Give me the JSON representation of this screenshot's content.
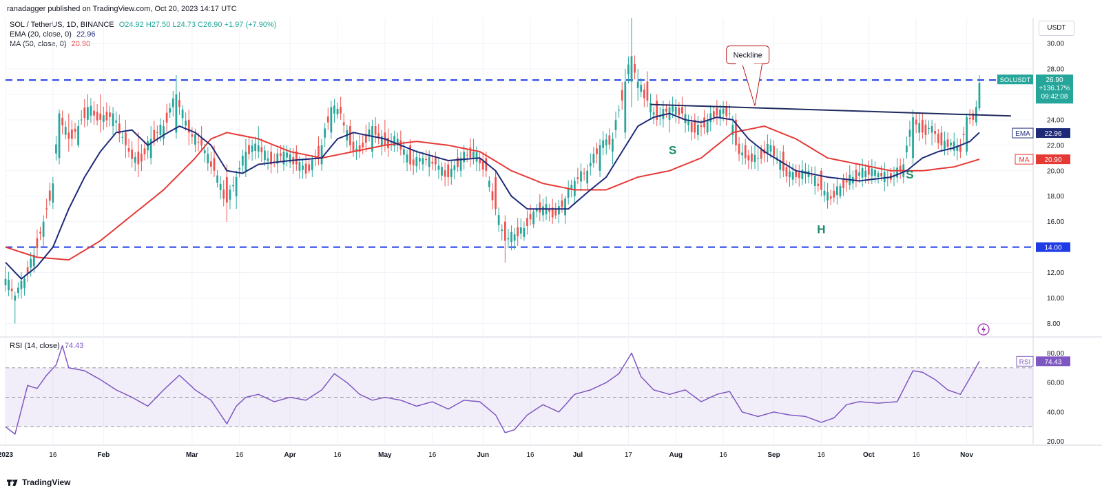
{
  "header": {
    "published": "ranadagger published on TradingView.com, Oct 20, 2023 14:17 UTC"
  },
  "legend": {
    "symbol": "SOL / TetherUS, 1D, BINANCE",
    "ohlc": "O24.92 H27.50 L24.73 C26.90 +1.97 (+7.90%)",
    "ema_label": "EMA (20, close, 0)",
    "ema_value": "22.96",
    "ma_label": "MA (50, close, 0)",
    "ma_value": "20.90",
    "rsi_label": "RSI (14, close)",
    "rsi_value": "74.43"
  },
  "unit": "USDT",
  "footer": {
    "brand": "TradingView"
  },
  "colors": {
    "up": "#26a69a",
    "down": "#ef5350",
    "ema": "#1e2a78",
    "ma": "#e53935",
    "rsi": "#7e57c2",
    "dashed": "#1e3be6",
    "neckline": "#1e2a5e",
    "pattern": "#1b8a6b"
  },
  "chart_data": {
    "type": "candlestick",
    "title": "SOL / TetherUS, 1D, BINANCE",
    "price_axis": {
      "min": 7,
      "max": 32,
      "ticks": [
        "8.00",
        "10.00",
        "12.00",
        "14.00",
        "16.00",
        "18.00",
        "20.00",
        "22.00",
        "24.00",
        "26.00",
        "28.00",
        "30.00"
      ]
    },
    "x_labels": [
      "2023",
      "16",
      "Feb",
      "Mar",
      "16",
      "Apr",
      "16",
      "May",
      "16",
      "Jun",
      "16",
      "Jul",
      "17",
      "Aug",
      "16",
      "Sep",
      "16",
      "Oct",
      "16",
      "Nov"
    ],
    "x_label_days": [
      0,
      15,
      31,
      59,
      74,
      90,
      105,
      120,
      135,
      151,
      166,
      181,
      197,
      212,
      227,
      243,
      258,
      273,
      288,
      304
    ],
    "ohlc_key": [
      [
        0,
        11.0,
        12.5,
        10.5,
        11.5
      ],
      [
        3,
        9.8,
        10.5,
        8.0,
        10.2
      ],
      [
        6,
        10.8,
        11.8,
        10.2,
        11.5
      ],
      [
        9,
        12.5,
        14.0,
        12.0,
        13.4
      ],
      [
        12,
        14.8,
        16.5,
        14.0,
        16.0
      ],
      [
        15,
        17.5,
        19.5,
        17.0,
        19.0
      ],
      [
        17,
        21.0,
        24.8,
        20.5,
        24.5
      ],
      [
        20,
        23.0,
        24.5,
        21.5,
        22.5
      ],
      [
        23,
        22.0,
        24.0,
        21.8,
        23.5
      ],
      [
        26,
        24.0,
        26.0,
        23.5,
        25.0
      ],
      [
        30,
        24.5,
        26.0,
        23.0,
        24.0
      ],
      [
        34,
        23.5,
        25.0,
        22.8,
        24.5
      ],
      [
        38,
        23.0,
        24.0,
        21.0,
        22.0
      ],
      [
        42,
        21.5,
        23.0,
        19.5,
        20.5
      ],
      [
        46,
        21.0,
        23.5,
        20.5,
        22.5
      ],
      [
        50,
        22.5,
        24.0,
        22.0,
        23.5
      ],
      [
        54,
        23.0,
        27.5,
        22.5,
        26.0
      ],
      [
        58,
        24.0,
        24.8,
        22.0,
        23.0
      ],
      [
        62,
        22.5,
        23.5,
        21.5,
        22.0
      ],
      [
        66,
        21.0,
        22.0,
        19.5,
        20.0
      ],
      [
        70,
        19.5,
        20.5,
        16.0,
        17.5
      ],
      [
        73,
        18.0,
        20.0,
        17.0,
        19.5
      ],
      [
        76,
        20.0,
        22.5,
        19.5,
        21.5
      ],
      [
        80,
        21.5,
        23.5,
        21.0,
        22.0
      ],
      [
        84,
        21.5,
        22.0,
        19.8,
        20.5
      ],
      [
        88,
        20.5,
        22.0,
        20.0,
        21.5
      ],
      [
        92,
        21.5,
        22.0,
        20.0,
        20.5
      ],
      [
        96,
        20.5,
        21.0,
        19.8,
        20.0
      ],
      [
        100,
        20.5,
        22.5,
        20.0,
        22.0
      ],
      [
        103,
        23.0,
        25.5,
        22.5,
        25.0
      ],
      [
        106,
        25.0,
        25.8,
        24.0,
        24.5
      ],
      [
        109,
        23.5,
        24.0,
        21.5,
        22.0
      ],
      [
        112,
        22.0,
        22.8,
        21.0,
        21.5
      ],
      [
        116,
        21.5,
        24.0,
        21.0,
        23.5
      ],
      [
        120,
        23.0,
        24.0,
        21.5,
        22.0
      ],
      [
        124,
        22.0,
        23.0,
        21.5,
        22.5
      ],
      [
        128,
        22.0,
        22.5,
        20.0,
        20.5
      ],
      [
        132,
        20.5,
        21.5,
        20.0,
        21.0
      ],
      [
        136,
        21.0,
        21.5,
        20.0,
        20.5
      ],
      [
        140,
        20.5,
        20.8,
        18.8,
        19.5
      ],
      [
        144,
        20.0,
        21.5,
        19.5,
        21.0
      ],
      [
        148,
        21.0,
        22.5,
        20.5,
        21.5
      ],
      [
        152,
        21.0,
        21.5,
        19.5,
        20.0
      ],
      [
        155,
        19.5,
        20.0,
        16.5,
        17.0
      ],
      [
        158,
        16.0,
        16.5,
        12.8,
        14.5
      ],
      [
        161,
        14.5,
        15.5,
        13.8,
        15.0
      ],
      [
        164,
        14.8,
        16.0,
        14.5,
        15.5
      ],
      [
        167,
        15.8,
        17.0,
        15.5,
        16.8
      ],
      [
        170,
        16.5,
        17.8,
        16.0,
        17.2
      ],
      [
        174,
        17.0,
        17.5,
        16.2,
        16.5
      ],
      [
        177,
        16.5,
        18.0,
        15.8,
        17.8
      ],
      [
        180,
        18.0,
        19.5,
        17.5,
        19.2
      ],
      [
        184,
        19.0,
        20.5,
        18.5,
        20.0
      ],
      [
        188,
        20.0,
        22.5,
        19.5,
        22.0
      ],
      [
        192,
        21.5,
        23.0,
        20.5,
        22.5
      ],
      [
        196,
        23.0,
        28.0,
        22.5,
        27.0
      ],
      [
        198,
        27.0,
        32.0,
        25.0,
        29.0
      ],
      [
        200,
        26.5,
        28.0,
        25.5,
        27.0
      ],
      [
        203,
        27.0,
        27.8,
        25.0,
        25.5
      ],
      [
        206,
        25.5,
        26.0,
        23.5,
        24.0
      ],
      [
        210,
        24.0,
        25.5,
        23.0,
        25.0
      ],
      [
        214,
        25.0,
        25.8,
        24.0,
        24.5
      ],
      [
        218,
        24.0,
        24.5,
        22.5,
        23.0
      ],
      [
        222,
        23.0,
        24.5,
        22.8,
        24.0
      ],
      [
        226,
        24.2,
        25.2,
        23.5,
        24.8
      ],
      [
        229,
        24.5,
        25.2,
        24.0,
        24.5
      ],
      [
        231,
        24.0,
        24.5,
        21.5,
        22.0
      ],
      [
        234,
        22.0,
        22.5,
        20.5,
        21.0
      ],
      [
        238,
        21.0,
        21.8,
        20.0,
        21.0
      ],
      [
        242,
        21.5,
        22.5,
        21.0,
        22.0
      ],
      [
        246,
        21.5,
        22.0,
        19.5,
        20.0
      ],
      [
        250,
        20.0,
        20.5,
        19.0,
        19.5
      ],
      [
        254,
        19.5,
        20.5,
        19.0,
        20.0
      ],
      [
        258,
        20.0,
        20.2,
        18.0,
        18.5
      ],
      [
        261,
        18.0,
        18.5,
        17.3,
        17.8
      ],
      [
        264,
        18.0,
        19.0,
        17.8,
        18.8
      ],
      [
        268,
        19.0,
        20.0,
        18.5,
        19.5
      ],
      [
        272,
        19.5,
        20.5,
        19.0,
        20.0
      ],
      [
        276,
        19.5,
        20.0,
        19.0,
        19.8
      ],
      [
        280,
        19.8,
        20.2,
        19.0,
        19.3
      ],
      [
        284,
        19.5,
        21.0,
        19.0,
        20.5
      ],
      [
        287,
        21.0,
        24.8,
        20.5,
        24.2
      ],
      [
        290,
        24.0,
        24.5,
        22.5,
        23.0
      ],
      [
        293,
        23.0,
        24.0,
        22.0,
        23.5
      ],
      [
        296,
        23.0,
        23.5,
        21.5,
        22.0
      ],
      [
        299,
        22.0,
        22.5,
        21.5,
        22.2
      ],
      [
        302,
        22.0,
        22.5,
        21.0,
        21.5
      ],
      [
        304,
        21.5,
        24.5,
        21.2,
        24.2
      ],
      [
        306,
        24.5,
        24.8,
        23.5,
        24.0
      ],
      [
        307,
        23.8,
        25.5,
        23.5,
        25.0
      ],
      [
        308,
        24.9,
        27.5,
        24.7,
        26.9
      ]
    ],
    "ema20_key": [
      [
        0,
        12.8
      ],
      [
        5,
        11.5
      ],
      [
        10,
        12.5
      ],
      [
        15,
        14.0
      ],
      [
        20,
        17.0
      ],
      [
        25,
        19.5
      ],
      [
        30,
        21.5
      ],
      [
        35,
        23.0
      ],
      [
        40,
        23.2
      ],
      [
        45,
        22.0
      ],
      [
        50,
        22.8
      ],
      [
        55,
        23.5
      ],
      [
        60,
        23.0
      ],
      [
        65,
        22.0
      ],
      [
        70,
        20.0
      ],
      [
        75,
        19.8
      ],
      [
        80,
        20.5
      ],
      [
        90,
        20.8
      ],
      [
        100,
        21.0
      ],
      [
        105,
        22.5
      ],
      [
        110,
        23.0
      ],
      [
        120,
        22.5
      ],
      [
        130,
        21.5
      ],
      [
        140,
        20.8
      ],
      [
        150,
        21.0
      ],
      [
        155,
        20.0
      ],
      [
        160,
        18.0
      ],
      [
        165,
        17.0
      ],
      [
        170,
        17.0
      ],
      [
        178,
        17.0
      ],
      [
        185,
        18.5
      ],
      [
        190,
        19.5
      ],
      [
        195,
        21.5
      ],
      [
        200,
        23.5
      ],
      [
        205,
        24.2
      ],
      [
        210,
        24.5
      ],
      [
        215,
        24.0
      ],
      [
        220,
        23.8
      ],
      [
        225,
        24.2
      ],
      [
        230,
        24.0
      ],
      [
        235,
        22.5
      ],
      [
        240,
        21.5
      ],
      [
        250,
        20.0
      ],
      [
        260,
        19.5
      ],
      [
        270,
        19.2
      ],
      [
        280,
        19.5
      ],
      [
        285,
        20.0
      ],
      [
        290,
        21.0
      ],
      [
        295,
        21.5
      ],
      [
        300,
        21.8
      ],
      [
        305,
        22.3
      ],
      [
        308,
        23.0
      ]
    ],
    "ma50_key": [
      [
        0,
        14.0
      ],
      [
        10,
        13.2
      ],
      [
        20,
        13.0
      ],
      [
        30,
        14.5
      ],
      [
        40,
        16.5
      ],
      [
        50,
        18.5
      ],
      [
        60,
        21.0
      ],
      [
        65,
        22.5
      ],
      [
        70,
        23.0
      ],
      [
        80,
        22.5
      ],
      [
        90,
        21.5
      ],
      [
        100,
        21.0
      ],
      [
        110,
        21.5
      ],
      [
        120,
        22.0
      ],
      [
        130,
        22.3
      ],
      [
        140,
        22.0
      ],
      [
        150,
        21.5
      ],
      [
        160,
        20.0
      ],
      [
        170,
        19.0
      ],
      [
        180,
        18.5
      ],
      [
        190,
        18.5
      ],
      [
        200,
        19.5
      ],
      [
        210,
        20.0
      ],
      [
        220,
        21.0
      ],
      [
        230,
        23.0
      ],
      [
        240,
        23.5
      ],
      [
        250,
        22.5
      ],
      [
        260,
        21.0
      ],
      [
        270,
        20.5
      ],
      [
        280,
        20.0
      ],
      [
        290,
        20.0
      ],
      [
        300,
        20.3
      ],
      [
        308,
        20.9
      ]
    ],
    "rsi_axis": {
      "min": 18,
      "max": 90,
      "ticks": [
        "20.00",
        "40.00",
        "60.00",
        "80.00"
      ],
      "band": [
        30,
        70
      ]
    },
    "rsi_key": [
      [
        0,
        30
      ],
      [
        3,
        25
      ],
      [
        7,
        58
      ],
      [
        10,
        56
      ],
      [
        13,
        65
      ],
      [
        16,
        72
      ],
      [
        18,
        85
      ],
      [
        20,
        70
      ],
      [
        25,
        68
      ],
      [
        30,
        62
      ],
      [
        35,
        55
      ],
      [
        40,
        50
      ],
      [
        45,
        44
      ],
      [
        50,
        55
      ],
      [
        55,
        65
      ],
      [
        60,
        55
      ],
      [
        65,
        48
      ],
      [
        70,
        32
      ],
      [
        73,
        44
      ],
      [
        76,
        50
      ],
      [
        80,
        52
      ],
      [
        85,
        47
      ],
      [
        90,
        50
      ],
      [
        95,
        48
      ],
      [
        100,
        55
      ],
      [
        104,
        66
      ],
      [
        108,
        60
      ],
      [
        112,
        52
      ],
      [
        116,
        48
      ],
      [
        120,
        50
      ],
      [
        125,
        48
      ],
      [
        130,
        44
      ],
      [
        135,
        47
      ],
      [
        140,
        42
      ],
      [
        145,
        48
      ],
      [
        150,
        47
      ],
      [
        155,
        38
      ],
      [
        158,
        26
      ],
      [
        161,
        28
      ],
      [
        165,
        38
      ],
      [
        170,
        45
      ],
      [
        175,
        40
      ],
      [
        180,
        52
      ],
      [
        185,
        55
      ],
      [
        190,
        60
      ],
      [
        194,
        66
      ],
      [
        198,
        80
      ],
      [
        201,
        64
      ],
      [
        205,
        55
      ],
      [
        210,
        52
      ],
      [
        215,
        55
      ],
      [
        220,
        47
      ],
      [
        225,
        52
      ],
      [
        229,
        54
      ],
      [
        233,
        40
      ],
      [
        238,
        37
      ],
      [
        243,
        40
      ],
      [
        248,
        38
      ],
      [
        253,
        37
      ],
      [
        258,
        33
      ],
      [
        262,
        36
      ],
      [
        266,
        45
      ],
      [
        270,
        47
      ],
      [
        276,
        46
      ],
      [
        282,
        47
      ],
      [
        287,
        68
      ],
      [
        290,
        67
      ],
      [
        294,
        62
      ],
      [
        298,
        55
      ],
      [
        302,
        52
      ],
      [
        305,
        63
      ],
      [
        308,
        74.43
      ]
    ],
    "annotations": [
      {
        "text": "Neckline",
        "type": "callout"
      },
      {
        "text": "S",
        "type": "pattern-label"
      },
      {
        "text": "H",
        "type": "pattern-label"
      },
      {
        "text": "S",
        "type": "pattern-label"
      }
    ],
    "levels": [
      {
        "value": 27.12,
        "label": "27.12"
      },
      {
        "value": 14.0,
        "label": "14.00"
      }
    ],
    "price_tags": {
      "symbol": "SOLUSDT",
      "last": "26.90",
      "change": "+136.17%",
      "countdown": "09:42:08",
      "ema": "EMA",
      "ema_value": "22.96",
      "ma": "MA",
      "ma_value": "20.90",
      "rsi": "RSI",
      "rsi_value": "74.43",
      "level_high": "27.12",
      "level_low": "14.00"
    }
  }
}
